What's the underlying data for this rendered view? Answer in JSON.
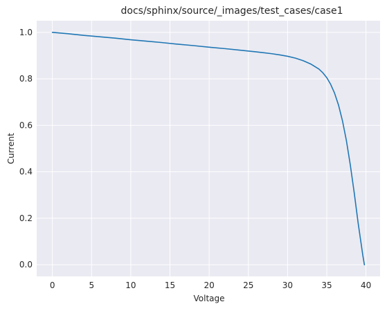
{
  "chart_data": {
    "type": "line",
    "title": "docs/sphinx/source/_images/test_cases/case1",
    "xlabel": "Voltage",
    "ylabel": "Current",
    "xlim": [
      -2.0,
      41.8
    ],
    "ylim": [
      -0.05,
      1.05
    ],
    "xticks": [
      0,
      5,
      10,
      15,
      20,
      25,
      30,
      35,
      40
    ],
    "xtick_labels": [
      "0",
      "5",
      "10",
      "15",
      "20",
      "25",
      "30",
      "35",
      "40"
    ],
    "yticks": [
      0.0,
      0.2,
      0.4,
      0.6,
      0.8,
      1.0
    ],
    "ytick_labels": [
      "0.0",
      "0.2",
      "0.4",
      "0.6",
      "0.8",
      "1.0"
    ],
    "grid": true,
    "colors": {
      "background": "#eaeaf2",
      "grid": "#ffffff",
      "series": "#1f77b4"
    },
    "series": [
      {
        "x": [
          0,
          2,
          4,
          6,
          8,
          10,
          12,
          14,
          16,
          18,
          20,
          22,
          24,
          26,
          28,
          29,
          30,
          31,
          32,
          33,
          34,
          34.5,
          35,
          35.5,
          36,
          36.5,
          37,
          37.5,
          38,
          38.5,
          39,
          39.3,
          39.6,
          39.8
        ],
        "y": [
          1.0,
          0.994,
          0.987,
          0.981,
          0.975,
          0.968,
          0.962,
          0.956,
          0.949,
          0.943,
          0.936,
          0.93,
          0.923,
          0.916,
          0.908,
          0.903,
          0.897,
          0.889,
          0.878,
          0.863,
          0.842,
          0.826,
          0.805,
          0.776,
          0.738,
          0.687,
          0.62,
          0.535,
          0.43,
          0.31,
          0.18,
          0.11,
          0.04,
          0.0
        ]
      }
    ]
  }
}
